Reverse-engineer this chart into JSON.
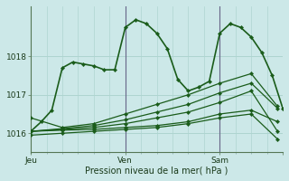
{
  "bg_color": "#cce8e8",
  "plot_bg_color": "#cce8e8",
  "grid_color": "#aed4d0",
  "line_color": "#1a5c1a",
  "xlabel": "Pression niveau de la mer( hPa )",
  "ylim": [
    1015.5,
    1019.3
  ],
  "xlim": [
    0,
    48
  ],
  "yticks": [
    1016,
    1017,
    1018
  ],
  "label_fontsize": 7,
  "tick_fontsize": 6.5,
  "series": [
    {
      "x": [
        0,
        2,
        4,
        6,
        8,
        10,
        12,
        14,
        16,
        18,
        20,
        22,
        24,
        26,
        28,
        30,
        32,
        34,
        36,
        38,
        40,
        42,
        44,
        46,
        48
      ],
      "y": [
        1016.05,
        1016.3,
        1016.6,
        1017.7,
        1017.85,
        1017.8,
        1017.75,
        1017.65,
        1017.65,
        1018.75,
        1018.95,
        1018.85,
        1018.6,
        1018.2,
        1017.4,
        1017.1,
        1017.2,
        1017.35,
        1018.6,
        1018.85,
        1018.75,
        1018.5,
        1018.1,
        1017.5,
        1016.65
      ],
      "lw": 1.2,
      "marker": true
    },
    {
      "x": [
        0,
        6,
        12,
        18,
        24,
        30,
        36,
        42,
        47
      ],
      "y": [
        1015.95,
        1016.0,
        1016.05,
        1016.1,
        1016.15,
        1016.25,
        1016.4,
        1016.5,
        1015.85
      ],
      "lw": 0.9,
      "marker": true
    },
    {
      "x": [
        0,
        6,
        12,
        18,
        24,
        30,
        36,
        42,
        47
      ],
      "y": [
        1016.05,
        1016.08,
        1016.1,
        1016.15,
        1016.2,
        1016.3,
        1016.5,
        1016.6,
        1016.3
      ],
      "lw": 0.9,
      "marker": true
    },
    {
      "x": [
        0,
        6,
        12,
        18,
        24,
        30,
        36,
        42,
        47
      ],
      "y": [
        1016.05,
        1016.1,
        1016.15,
        1016.25,
        1016.4,
        1016.55,
        1016.8,
        1017.1,
        1016.05
      ],
      "lw": 0.9,
      "marker": true
    },
    {
      "x": [
        0,
        6,
        12,
        18,
        24,
        30,
        36,
        42,
        47
      ],
      "y": [
        1016.05,
        1016.12,
        1016.2,
        1016.35,
        1016.55,
        1016.75,
        1017.05,
        1017.3,
        1016.65
      ],
      "lw": 0.9,
      "marker": true
    },
    {
      "x": [
        0,
        6,
        12,
        18,
        24,
        30,
        36,
        42,
        47
      ],
      "y": [
        1016.4,
        1016.15,
        1016.25,
        1016.5,
        1016.75,
        1017.0,
        1017.3,
        1017.55,
        1016.7
      ],
      "lw": 0.9,
      "marker": true
    }
  ],
  "vlines_x": [
    18,
    36
  ],
  "vline_color": "#666688",
  "day_labels": [
    {
      "x": 0,
      "label": "Jeu"
    },
    {
      "x": 18,
      "label": "Ven"
    },
    {
      "x": 36,
      "label": "Sam"
    }
  ]
}
